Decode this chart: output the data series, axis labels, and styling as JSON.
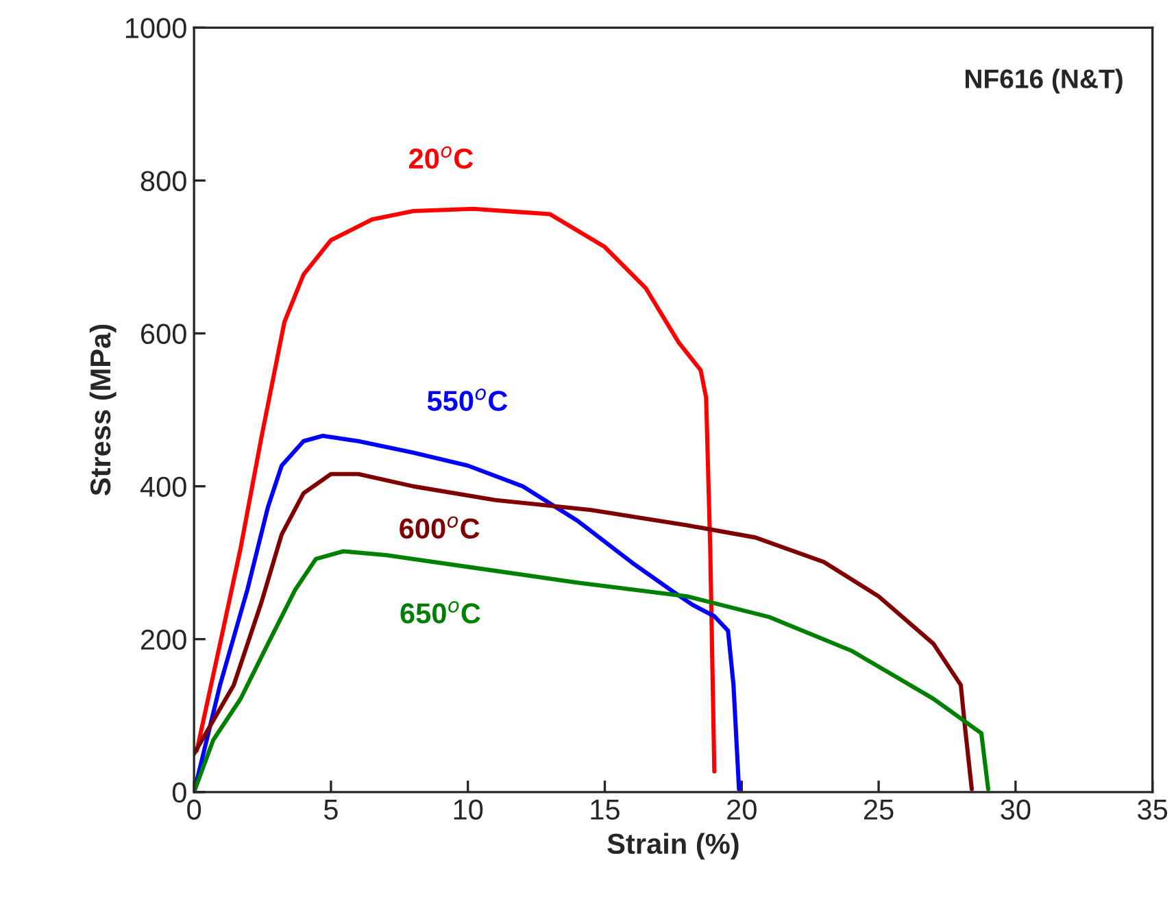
{
  "chart_data": {
    "type": "line",
    "xlabel": "Strain (%)",
    "ylabel": "Stress (MPa)",
    "xlim": [
      0,
      35
    ],
    "xticks": [
      0,
      5,
      10,
      15,
      20,
      25,
      30,
      35
    ],
    "ylim": [
      0,
      1000
    ],
    "yticks": [
      0,
      200,
      400,
      600,
      800,
      1000
    ],
    "grid": false,
    "legend": false,
    "marker": "none",
    "line_style": "solid",
    "annotations": [
      "NF616 (N&T)"
    ],
    "series": [
      {
        "name": "20$^{o}$C",
        "color": "#ff0000",
        "x": [
          0.1,
          0.95,
          1.7,
          2.45,
          2.95,
          3.3,
          4.0,
          5.0,
          6.5,
          8.0,
          10.2,
          13.0,
          15.0,
          16.5,
          17.7,
          18.5,
          18.7,
          18.85,
          19.0
        ],
        "values": [
          54,
          194,
          319,
          462,
          552,
          615,
          677,
          722,
          749,
          760,
          763,
          756,
          713,
          659,
          588,
          552,
          516,
          319,
          27
        ]
      },
      {
        "name": "550$^{o}$C",
        "color": "#0000ff",
        "x": [
          0,
          0.95,
          1.95,
          2.7,
          3.2,
          4.0,
          4.7,
          6.0,
          8.0,
          10.0,
          12.0,
          14.0,
          16.0,
          17.5,
          18.2,
          19.0,
          19.5,
          19.7,
          19.9
        ],
        "values": [
          0,
          140,
          265,
          373,
          427,
          459,
          466,
          459,
          444,
          427,
          400,
          355,
          300,
          262,
          245,
          230,
          211,
          140,
          4
        ]
      },
      {
        "name": "600$^{o}$C",
        "color": "#800000",
        "x": [
          0,
          1.45,
          2.45,
          3.2,
          4.0,
          5.0,
          6.0,
          8.0,
          11.0,
          14.5,
          18.0,
          20.5,
          23.0,
          25.0,
          27.0,
          28.0,
          28.15,
          28.4
        ],
        "values": [
          50,
          140,
          247,
          337,
          391,
          416,
          416,
          400,
          382,
          369,
          349,
          333,
          301,
          256,
          194,
          140,
          86,
          4
        ]
      },
      {
        "name": "650$^{o}$C",
        "color": "#008000",
        "x": [
          0,
          0.7,
          1.7,
          2.7,
          3.7,
          4.45,
          5.45,
          7.0,
          10.5,
          14.0,
          18.0,
          21.0,
          24.0,
          27.0,
          28.75,
          29.0
        ],
        "values": [
          0,
          68,
          122,
          194,
          265,
          305,
          315,
          310,
          292,
          274,
          256,
          229,
          185,
          122,
          77,
          4
        ]
      }
    ]
  }
}
